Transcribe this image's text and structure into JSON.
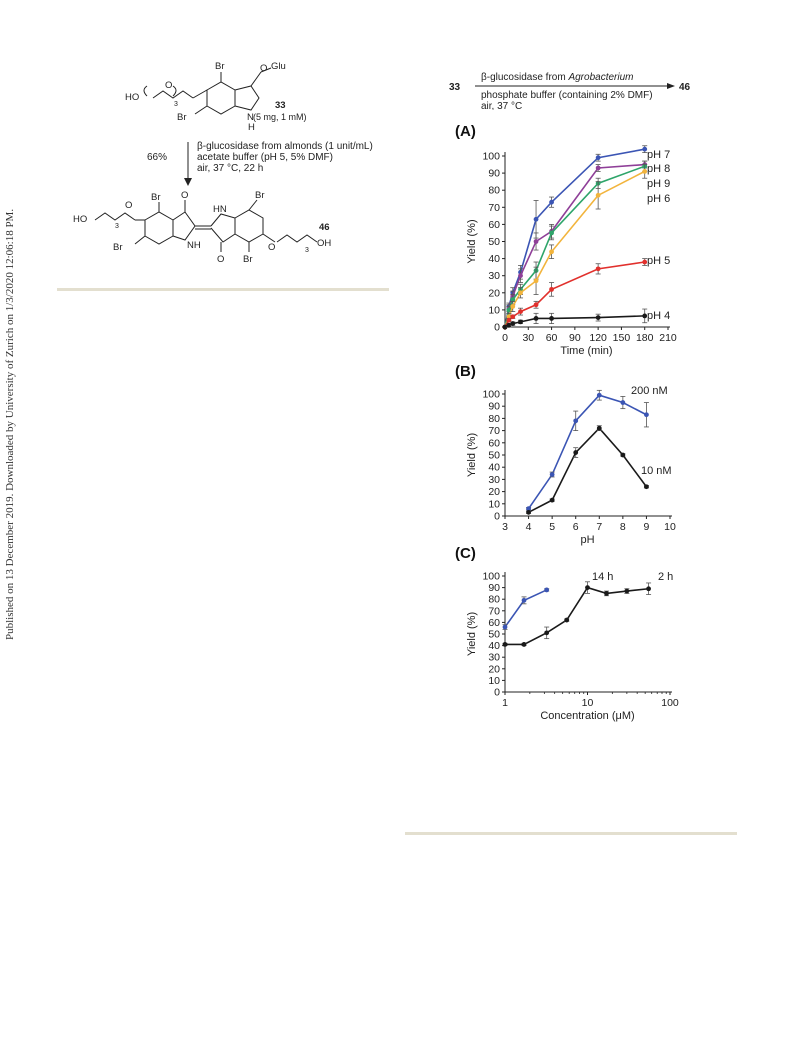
{
  "side_note": "Published on 13 December 2019. Downloaded by University of Zurich on 1/3/2020 12:06:18 PM.",
  "scheme": {
    "reactant_number": "33",
    "reactant_amount": "(5 mg, 1 mM)",
    "product_number": "46",
    "yield": "66%",
    "conditions": [
      "β-glucosidase from almonds (1 unit/mL)",
      "acetate buffer (pH 5, 5% DMF)",
      "air, 37 °C, 22 h"
    ],
    "atoms": {
      "br": "Br",
      "ho": "HO",
      "oh": "OH",
      "o": "O",
      "glu": "Glu",
      "n": "N",
      "h": "H",
      "nh": "NH",
      "hn": "HN",
      "sub3": "3"
    }
  },
  "reaction": {
    "from": "33",
    "to": "46",
    "above_arrow": "β-glucosidase from ",
    "above_arrow_italic": "Agrobacterium",
    "below_arrow": [
      "phosphate buffer (containing 2% DMF)",
      "air, 37 °C"
    ]
  },
  "colors": {
    "black": "#1a1a1a",
    "blue": "#3b55b4",
    "purple": "#8f3f98",
    "green": "#2ea56a",
    "orange": "#f2b43c",
    "red": "#e1302c"
  },
  "chart_data": [
    {
      "panel": "(A)",
      "type": "line",
      "xlabel": "Time (min)",
      "ylabel": "Yield (%)",
      "xlim": [
        0,
        210
      ],
      "ylim": [
        0,
        100
      ],
      "xticks": [
        0,
        30,
        60,
        90,
        120,
        150,
        180,
        210
      ],
      "yticks": [
        0,
        10,
        20,
        30,
        40,
        50,
        60,
        70,
        80,
        90,
        100
      ],
      "series": [
        {
          "name": "pH 7",
          "color": "blue",
          "x": [
            0,
            5,
            10,
            20,
            40,
            60,
            120,
            180
          ],
          "y": [
            0,
            12,
            20,
            32,
            63,
            73,
            99,
            104
          ],
          "err": [
            0,
            2,
            3,
            4,
            11,
            3,
            2,
            2
          ]
        },
        {
          "name": "pH 8",
          "color": "purple",
          "x": [
            0,
            5,
            10,
            20,
            40,
            60,
            120,
            180
          ],
          "y": [
            0,
            11,
            18,
            30,
            50,
            56,
            93,
            95
          ],
          "err": [
            0,
            2,
            3,
            4,
            5,
            4,
            2,
            2
          ]
        },
        {
          "name": "pH 9",
          "color": "green",
          "x": [
            0,
            5,
            10,
            20,
            40,
            60,
            120,
            180
          ],
          "y": [
            0,
            10,
            16,
            22,
            33,
            55,
            84,
            94
          ],
          "err": [
            0,
            2,
            3,
            3,
            5,
            4,
            3,
            3
          ]
        },
        {
          "name": "pH 6",
          "color": "orange",
          "x": [
            0,
            5,
            10,
            20,
            40,
            60,
            120,
            180
          ],
          "y": [
            0,
            6,
            12,
            20,
            27,
            44,
            77,
            91
          ],
          "err": [
            0,
            2,
            3,
            3,
            8,
            4,
            8,
            4
          ]
        },
        {
          "name": "pH 5",
          "color": "red",
          "x": [
            0,
            5,
            10,
            20,
            40,
            60,
            120,
            180
          ],
          "y": [
            0,
            4,
            6,
            9,
            13,
            22,
            34,
            38
          ],
          "err": [
            0,
            1,
            1,
            2,
            2,
            4,
            3,
            2
          ]
        },
        {
          "name": "pH 4",
          "color": "black",
          "x": [
            0,
            5,
            10,
            20,
            40,
            60,
            120,
            180
          ],
          "y": [
            0,
            1,
            2,
            3,
            5,
            5,
            5.5,
            6.5
          ],
          "err": [
            0,
            1,
            1,
            1,
            3,
            3,
            2,
            4
          ]
        }
      ]
    },
    {
      "panel": "(B)",
      "type": "line",
      "xlabel": "pH",
      "ylabel": "Yield (%)",
      "xlim": [
        3,
        10
      ],
      "ylim": [
        0,
        100
      ],
      "xticks": [
        3,
        4,
        5,
        6,
        7,
        8,
        9,
        10
      ],
      "yticks": [
        0,
        10,
        20,
        30,
        40,
        50,
        60,
        70,
        80,
        90,
        100
      ],
      "series": [
        {
          "name": "200 nM",
          "color": "blue",
          "x": [
            4,
            5,
            6,
            7,
            8,
            9
          ],
          "y": [
            6,
            34,
            78,
            99,
            93,
            83
          ],
          "err": [
            1,
            2,
            8,
            4,
            5,
            10
          ]
        },
        {
          "name": "10 nM",
          "color": "black",
          "x": [
            4,
            5,
            6,
            7,
            8,
            9
          ],
          "y": [
            3,
            13,
            52,
            72,
            50,
            24
          ],
          "err": [
            1,
            1,
            4,
            2,
            1,
            1
          ]
        }
      ]
    },
    {
      "panel": "(C)",
      "type": "line",
      "xscale": "log",
      "xlabel": "Concentration (μM)",
      "ylabel": "Yield (%)",
      "xlim": [
        1,
        100
      ],
      "ylim": [
        0,
        100
      ],
      "xticks": [
        1,
        10,
        100
      ],
      "yticks": [
        0,
        10,
        20,
        30,
        40,
        50,
        60,
        70,
        80,
        90,
        100
      ],
      "series": [
        {
          "name": "14 h",
          "color": "blue",
          "x": [
            1,
            1.7,
            3.2
          ],
          "y": [
            56,
            79,
            88
          ],
          "err": [
            2,
            3,
            1
          ]
        },
        {
          "name": "2 h",
          "color": "black",
          "x": [
            1,
            1.7,
            3.2,
            5.6,
            10,
            17,
            30,
            55
          ],
          "y": [
            41,
            41,
            51,
            62,
            90,
            85,
            87,
            89
          ],
          "err": [
            1,
            1,
            5,
            1,
            5,
            2,
            2,
            5
          ]
        }
      ]
    }
  ]
}
